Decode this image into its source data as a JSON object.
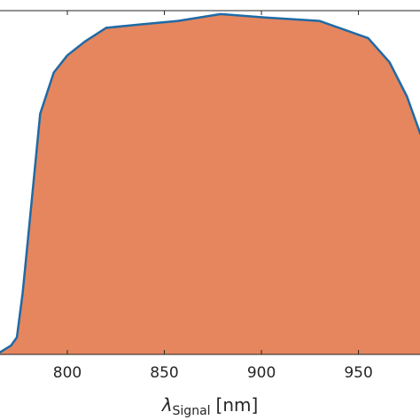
{
  "chart_data": {
    "type": "area",
    "x": [
      765,
      771,
      774,
      777,
      781,
      786,
      793,
      800,
      809,
      820,
      838,
      857,
      879,
      902,
      930,
      955,
      966,
      975,
      982
    ],
    "series": [
      {
        "color": "#e5865f",
        "line_color": "#1f6aa5",
        "values": [
          0.005,
          0.026,
          0.05,
          0.18,
          0.41,
          0.7,
          0.82,
          0.87,
          0.91,
          0.95,
          0.96,
          0.97,
          0.99,
          0.98,
          0.97,
          0.92,
          0.85,
          0.75,
          0.64
        ]
      }
    ],
    "xlim": [
      765.3,
      981.7
    ],
    "xticks": [
      800,
      850,
      900,
      950
    ],
    "ylim": [
      0,
      1
    ],
    "xlabel": {
      "symbol": "λ",
      "subscript": "Signal",
      "unit": "[nm]"
    }
  }
}
